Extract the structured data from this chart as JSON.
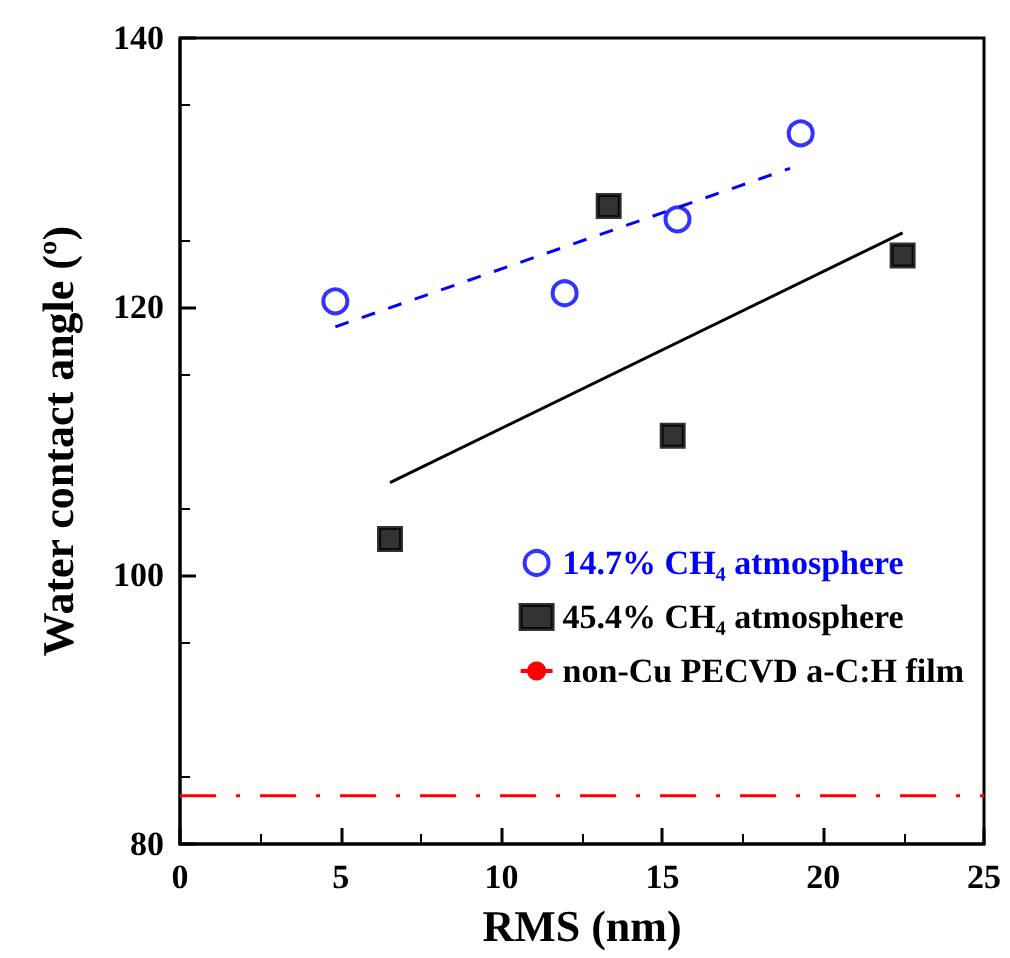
{
  "chart_data": {
    "type": "scatter",
    "xlabel": "RMS (nm)",
    "ylabel": "Water contact angle (º)",
    "xlim": [
      0,
      25
    ],
    "xticks": [
      0,
      5,
      10,
      15,
      20,
      25
    ],
    "ylim": [
      80,
      140
    ],
    "yticks": [
      80,
      100,
      120,
      140
    ],
    "legend": "bottom right",
    "grid": false,
    "series": [
      {
        "name": "14.7% CH₄ atmosphere",
        "color": "#0000ff",
        "marker": "circle",
        "x": [
          4.83,
          11.96,
          15.47,
          19.3
        ],
        "values": [
          120.4,
          121.0,
          126.5,
          132.9
        ]
      },
      {
        "name": "45.4% CH₄ atmosphere",
        "color": "#000000",
        "marker": "square",
        "x": [
          6.53,
          13.33,
          15.32,
          22.47
        ],
        "values": [
          102.7,
          127.5,
          110.4,
          123.8
        ]
      },
      {
        "type": "line",
        "color": "#0000ff",
        "line_style": "dashed",
        "marker": "none",
        "x": [
          4.83,
          18.97
        ],
        "values": [
          118.5,
          130.3
        ]
      },
      {
        "type": "line",
        "color": "#000000",
        "line_style": "solid",
        "marker": "none",
        "x": [
          6.53,
          22.47
        ],
        "values": [
          106.9,
          125.5
        ]
      }
    ],
    "ref_lines": [
      {
        "axis": "y",
        "value": 83.6,
        "label": "non-Cu PECVD a-C:H film",
        "color": "#ff0000",
        "line_style": "dashed"
      }
    ]
  }
}
